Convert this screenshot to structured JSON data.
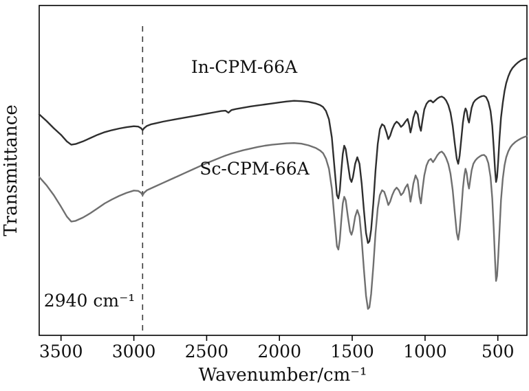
{
  "chart_data": {
    "type": "line",
    "title": "",
    "xlabel": "Wavenumber/cm⁻¹",
    "ylabel": "Transmittance",
    "legend_position": "inline-labels",
    "grid": false,
    "x_axis": {
      "min": 300,
      "max": 3650,
      "reversed": true,
      "ticks": [
        3500,
        3000,
        2500,
        2000,
        1500,
        1000,
        500
      ]
    },
    "y_axis": {
      "min": 0,
      "max": 100,
      "ticks_visible": false,
      "unit": "arbitrary transmittance units"
    },
    "annotation": {
      "label": "2940 cm⁻¹",
      "x": 2940,
      "style": "vertical-dashed-line"
    },
    "x": [
      3650,
      3600,
      3550,
      3500,
      3460,
      3430,
      3400,
      3350,
      3300,
      3250,
      3200,
      3150,
      3100,
      3050,
      3000,
      2970,
      2950,
      2940,
      2930,
      2910,
      2880,
      2850,
      2800,
      2750,
      2700,
      2650,
      2600,
      2550,
      2500,
      2450,
      2400,
      2370,
      2350,
      2330,
      2300,
      2250,
      2200,
      2150,
      2100,
      2050,
      2000,
      1950,
      1900,
      1850,
      1800,
      1750,
      1720,
      1700,
      1680,
      1660,
      1640,
      1620,
      1605,
      1595,
      1585,
      1575,
      1565,
      1555,
      1545,
      1530,
      1515,
      1505,
      1495,
      1480,
      1465,
      1450,
      1435,
      1420,
      1405,
      1392,
      1382,
      1370,
      1355,
      1340,
      1325,
      1310,
      1295,
      1280,
      1265,
      1252,
      1240,
      1225,
      1210,
      1195,
      1180,
      1165,
      1150,
      1135,
      1120,
      1110,
      1100,
      1092,
      1080,
      1065,
      1050,
      1038,
      1028,
      1018,
      1005,
      990,
      975,
      960,
      945,
      930,
      915,
      900,
      885,
      870,
      855,
      840,
      825,
      810,
      795,
      782,
      772,
      762,
      750,
      740,
      730,
      722,
      714,
      705,
      698,
      690,
      680,
      668,
      655,
      640,
      625,
      610,
      595,
      580,
      565,
      550,
      538,
      528,
      519,
      512,
      505,
      497,
      488,
      478,
      466,
      454,
      442,
      428,
      414,
      400,
      380,
      360,
      340,
      320,
      300
    ],
    "series": [
      {
        "name": "In-CPM-66A",
        "color": "#2e2e2e",
        "y": [
          67,
          65,
          62.8,
          60.8,
          58.8,
          57.8,
          58,
          58.8,
          59.8,
          60.8,
          61.6,
          62.2,
          62.7,
          63.1,
          63.4,
          63.3,
          62.8,
          62.2,
          62.8,
          63.5,
          64,
          64.3,
          64.8,
          65.2,
          65.6,
          66,
          66.4,
          66.8,
          67.2,
          67.6,
          68,
          68.1,
          67.5,
          68.3,
          68.6,
          69,
          69.4,
          69.7,
          70,
          70.3,
          70.6,
          70.9,
          71.1,
          71,
          70.8,
          70.3,
          69.8,
          69.2,
          68,
          65.5,
          60,
          50,
          42.5,
          41.5,
          44,
          50,
          55,
          57.5,
          56.5,
          52,
          47.5,
          46.5,
          48,
          52,
          54,
          52,
          46,
          38,
          31,
          28,
          28.5,
          32,
          40,
          50,
          58,
          62.5,
          64,
          63.5,
          61.5,
          59.5,
          60.5,
          62.5,
          64,
          64.8,
          64.2,
          63.2,
          63.8,
          64.8,
          65.6,
          64,
          61.5,
          63,
          66,
          68,
          67,
          63.5,
          62,
          65,
          68.5,
          70.2,
          71,
          71.2,
          70.6,
          71.2,
          71.8,
          72.2,
          72.4,
          72,
          71.2,
          69.8,
          67.5,
          63.5,
          58,
          53.5,
          52,
          54.5,
          60,
          64.5,
          67.5,
          68.8,
          68,
          65.5,
          64.5,
          66.5,
          69,
          70.5,
          71.3,
          71.8,
          72.2,
          72.5,
          72.6,
          72.2,
          70.8,
          68,
          63.5,
          57,
          50,
          46.5,
          48,
          53,
          60,
          66,
          70.5,
          74,
          76.5,
          78.5,
          80,
          81,
          82,
          82.8,
          83.4,
          83.8,
          84
        ]
      },
      {
        "name": "Sc-CPM-66A",
        "color": "#6f6f6f",
        "y": [
          48,
          45.5,
          42.5,
          39,
          36,
          34.5,
          34.7,
          35.7,
          37,
          38.5,
          40,
          41.2,
          42.3,
          43.2,
          43.9,
          43.8,
          43.2,
          42.5,
          43.2,
          44,
          44.6,
          45.2,
          46.2,
          47.2,
          48.2,
          49.2,
          50.2,
          51.2,
          52.2,
          53.1,
          54,
          54.5,
          54.8,
          55.1,
          55.5,
          56.1,
          56.6,
          57.1,
          57.5,
          57.8,
          58,
          58.2,
          58.3,
          58.1,
          57.6,
          56.8,
          56,
          55.2,
          53.5,
          50.5,
          44.5,
          34.5,
          27,
          26,
          29,
          35,
          40,
          42,
          41,
          36,
          31.5,
          30.5,
          32,
          36,
          38,
          36,
          29,
          20,
          12,
          8,
          8.5,
          12.5,
          21,
          31,
          38.5,
          42.5,
          44,
          43.5,
          41.5,
          39.5,
          40.5,
          42.5,
          44,
          44.8,
          44,
          42.5,
          43.2,
          44.8,
          45.8,
          43.8,
          40.5,
          42.5,
          46,
          48.5,
          47,
          42,
          40,
          44,
          48.5,
          51.5,
          53,
          53.5,
          52.5,
          53.5,
          54.6,
          55.4,
          55.7,
          55,
          53.8,
          52,
          49,
          44,
          37,
          31,
          29,
          32,
          38.5,
          44.5,
          48.5,
          50.5,
          49.2,
          46,
          44.5,
          47,
          50,
          52,
          53,
          53.7,
          54.2,
          54.6,
          54.7,
          54.1,
          52.2,
          48,
          41.5,
          32.5,
          22.5,
          16.5,
          18,
          24,
          32,
          41,
          47.5,
          51.5,
          54,
          55.8,
          57,
          57.8,
          58.6,
          59.2,
          59.7,
          60.1,
          60.4
        ]
      }
    ]
  }
}
